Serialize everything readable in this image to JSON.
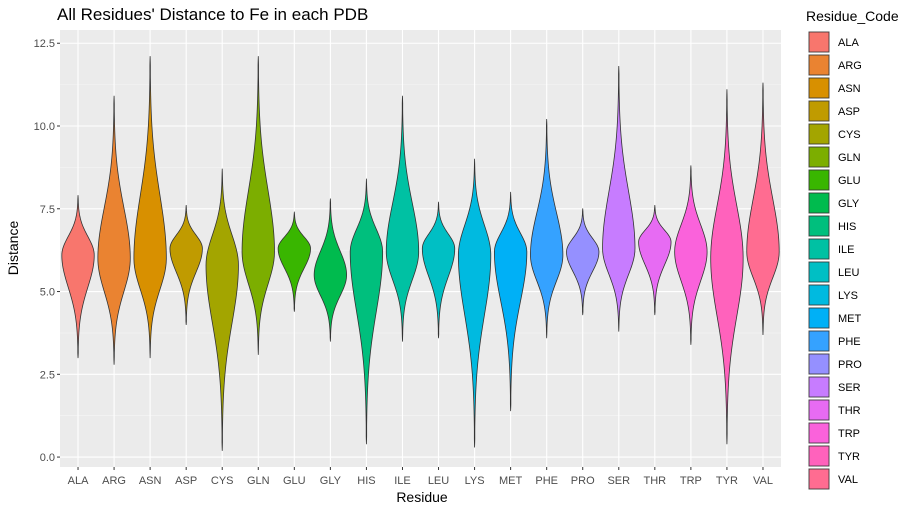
{
  "chart_data": {
    "type": "violin",
    "title": "All Residues' Distance to Fe in each PDB",
    "xlabel": "Residue",
    "ylabel": "Distance",
    "ylim": [
      -0.3,
      12.9
    ],
    "yticks": [
      0.0,
      2.5,
      5.0,
      7.5,
      10.0,
      12.5
    ],
    "ytick_labels": [
      "0.0",
      "2.5",
      "5.0",
      "7.5",
      "10.0",
      "12.5"
    ],
    "grid": true,
    "legend": {
      "title": "Residue_Code",
      "position": "right"
    },
    "categories": [
      "ALA",
      "ARG",
      "ASN",
      "ASP",
      "CYS",
      "GLN",
      "GLU",
      "GLY",
      "HIS",
      "ILE",
      "LEU",
      "LYS",
      "MET",
      "PHE",
      "PRO",
      "SER",
      "THR",
      "TRP",
      "TYR",
      "VAL"
    ],
    "series": [
      {
        "name": "ALA",
        "color": "#F8766D",
        "min": 3.0,
        "max": 7.9,
        "mode": 6.1
      },
      {
        "name": "ARG",
        "color": "#EA8331",
        "min": 2.8,
        "max": 10.9,
        "mode": 6.0
      },
      {
        "name": "ASN",
        "color": "#D89000",
        "min": 3.0,
        "max": 12.1,
        "mode": 6.0
      },
      {
        "name": "ASP",
        "color": "#C09B00",
        "min": 4.0,
        "max": 7.6,
        "mode": 6.3
      },
      {
        "name": "CYS",
        "color": "#A3A500",
        "min": 0.2,
        "max": 8.7,
        "mode": 5.8
      },
      {
        "name": "GLN",
        "color": "#7CAE00",
        "min": 3.1,
        "max": 12.1,
        "mode": 6.2
      },
      {
        "name": "GLU",
        "color": "#39B600",
        "min": 4.4,
        "max": 7.4,
        "mode": 6.3
      },
      {
        "name": "GLY",
        "color": "#00BB4E",
        "min": 3.5,
        "max": 7.8,
        "mode": 5.5
      },
      {
        "name": "HIS",
        "color": "#00BF7D",
        "min": 0.4,
        "max": 8.4,
        "mode": 6.2
      },
      {
        "name": "ILE",
        "color": "#00C1A3",
        "min": 3.5,
        "max": 10.9,
        "mode": 6.2
      },
      {
        "name": "LEU",
        "color": "#00BFC4",
        "min": 3.6,
        "max": 7.7,
        "mode": 6.3
      },
      {
        "name": "LYS",
        "color": "#00BAE0",
        "min": 0.3,
        "max": 9.0,
        "mode": 6.1
      },
      {
        "name": "MET",
        "color": "#00B0F6",
        "min": 1.4,
        "max": 8.0,
        "mode": 6.2
      },
      {
        "name": "PHE",
        "color": "#35A2FF",
        "min": 3.6,
        "max": 10.2,
        "mode": 6.1
      },
      {
        "name": "PRO",
        "color": "#9590FF",
        "min": 4.3,
        "max": 7.5,
        "mode": 6.2
      },
      {
        "name": "SER",
        "color": "#C77CFF",
        "min": 3.8,
        "max": 11.8,
        "mode": 6.3
      },
      {
        "name": "THR",
        "color": "#E76BF3",
        "min": 4.3,
        "max": 7.6,
        "mode": 6.5
      },
      {
        "name": "TRP",
        "color": "#FA62DB",
        "min": 3.4,
        "max": 8.8,
        "mode": 6.2
      },
      {
        "name": "TYR",
        "color": "#FF62BC",
        "min": 0.4,
        "max": 11.1,
        "mode": 6.0
      },
      {
        "name": "VAL",
        "color": "#FF6C91",
        "min": 3.7,
        "max": 11.3,
        "mode": 6.2
      }
    ]
  }
}
